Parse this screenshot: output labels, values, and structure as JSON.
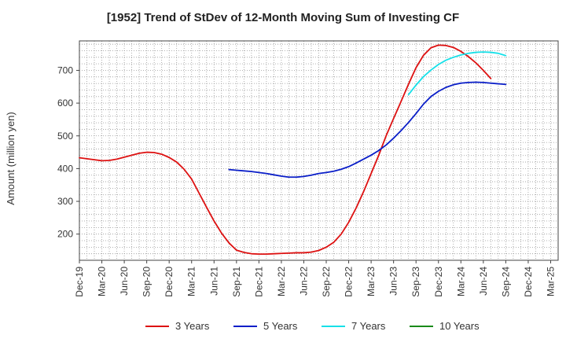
{
  "chart_data": {
    "type": "line",
    "title": "[1952]  Trend of StDev of 12-Month Moving Sum of Investing CF",
    "ylabel": "Amount (million yen)",
    "xlabel": "",
    "ylim": [
      120,
      790
    ],
    "yticks": [
      200,
      300,
      400,
      500,
      600,
      700
    ],
    "x_start": "Dec-19",
    "x_months": 64,
    "x_tick_labels": [
      "Dec-19",
      "Mar-20",
      "Jun-20",
      "Sep-20",
      "Dec-20",
      "Mar-21",
      "Jun-21",
      "Sep-21",
      "Dec-21",
      "Mar-22",
      "Jun-22",
      "Sep-22",
      "Dec-22",
      "Mar-23",
      "Jun-23",
      "Sep-23",
      "Dec-23",
      "Mar-24",
      "Jun-24",
      "Sep-24",
      "Dec-24",
      "Mar-25"
    ],
    "grid": true,
    "legend_position": "bottom",
    "series": [
      {
        "name": "3 Years",
        "color": "#dd1111",
        "start_index": 0,
        "values": [
          433,
          430,
          427,
          424,
          425,
          429,
          435,
          441,
          447,
          450,
          449,
          444,
          434,
          420,
          398,
          368,
          325,
          282,
          240,
          203,
          173,
          151,
          144,
          140,
          139,
          139,
          140,
          141,
          142,
          143,
          143,
          145,
          150,
          160,
          175,
          200,
          236,
          280,
          330,
          385,
          440,
          500,
          553,
          605,
          658,
          708,
          746,
          769,
          777,
          776,
          770,
          758,
          742,
          723,
          700,
          675
        ]
      },
      {
        "name": "5 Years",
        "color": "#0a1ec8",
        "start_index": 20,
        "values": [
          397,
          395,
          393,
          391,
          388,
          385,
          381,
          377,
          374,
          374,
          376,
          380,
          385,
          388,
          392,
          398,
          406,
          417,
          429,
          441,
          455,
          472,
          493,
          516,
          541,
          568,
          597,
          620,
          636,
          648,
          656,
          661,
          663,
          664,
          663,
          661,
          659,
          657
        ]
      },
      {
        "name": "7 Years",
        "color": "#17e0e8",
        "start_index": 44,
        "values": [
          626,
          655,
          681,
          701,
          718,
          731,
          740,
          747,
          752,
          755,
          756,
          755,
          752,
          745
        ]
      },
      {
        "name": "10 Years",
        "color": "#1a8a1a",
        "start_index": 0,
        "values": []
      }
    ]
  }
}
